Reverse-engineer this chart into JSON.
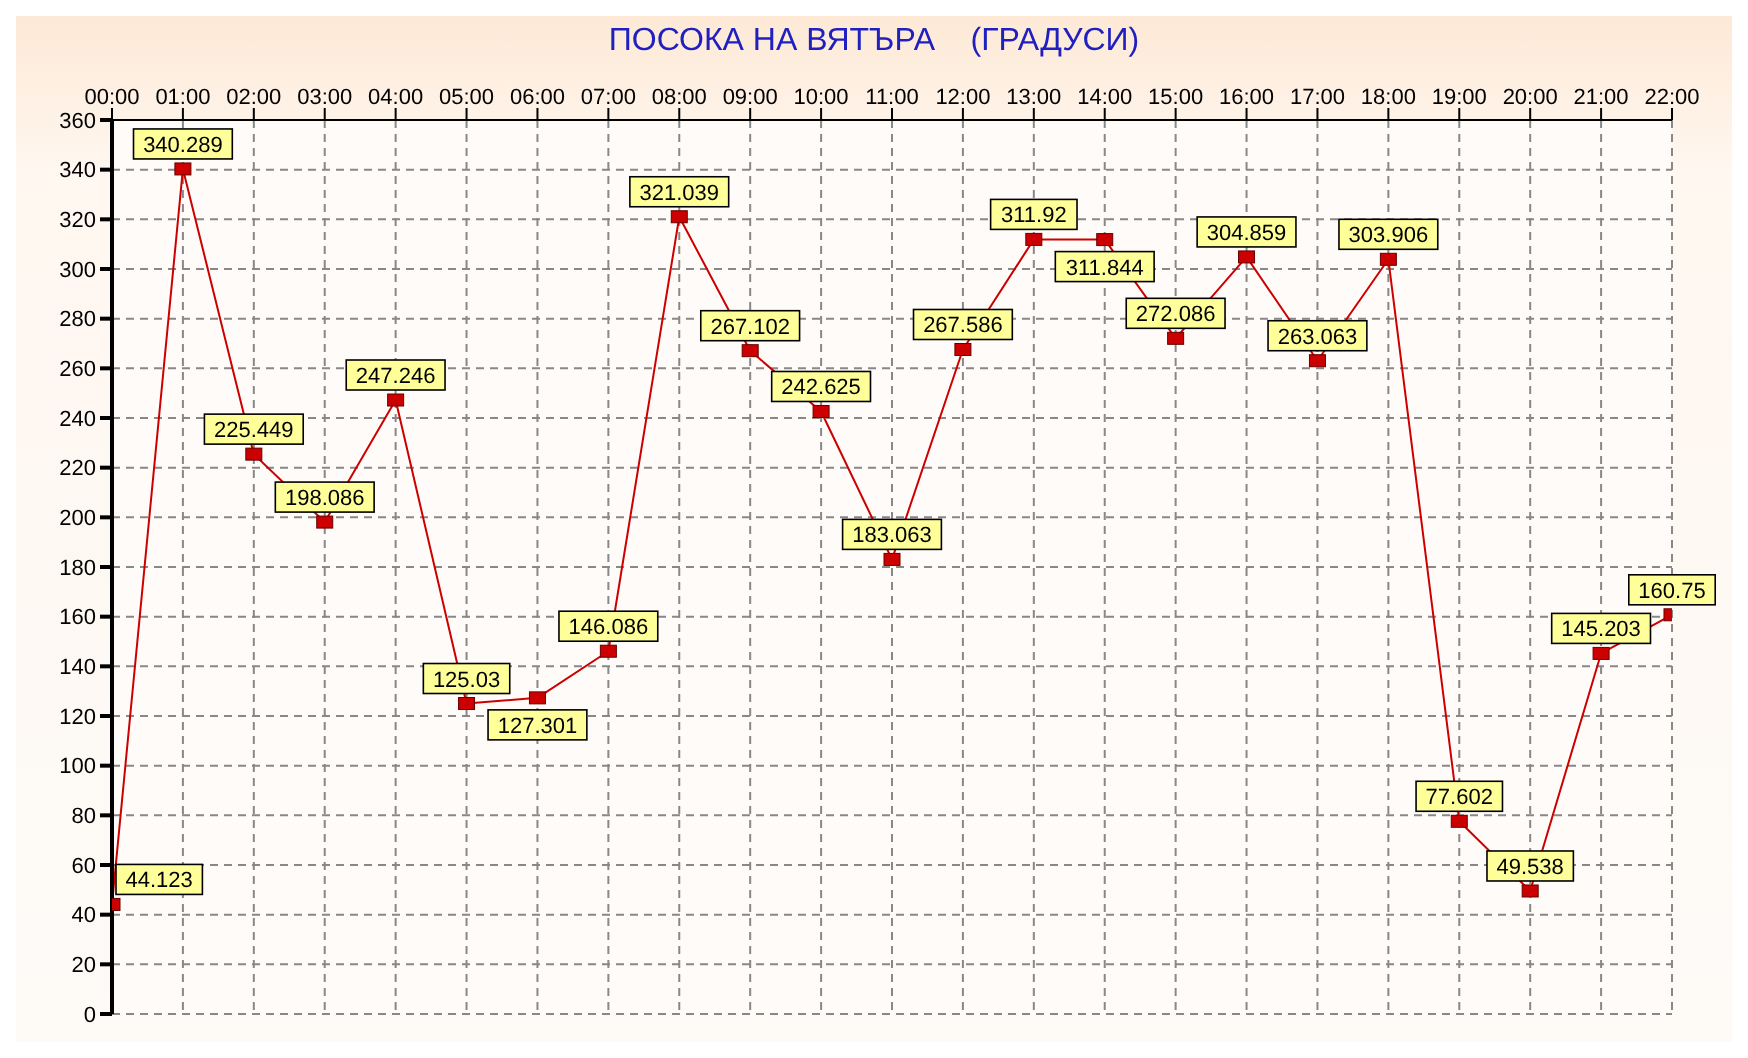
{
  "chart_data": {
    "type": "line",
    "title": "ПОСОКА НА ВЯТЪРА    (ГРАДУСИ)",
    "categories": [
      "00:00",
      "01:00",
      "02:00",
      "03:00",
      "04:00",
      "05:00",
      "06:00",
      "07:00",
      "08:00",
      "09:00",
      "10:00",
      "11:00",
      "12:00",
      "13:00",
      "14:00",
      "15:00",
      "16:00",
      "17:00",
      "18:00",
      "19:00",
      "20:00",
      "21:00",
      "22:00"
    ],
    "series": [
      {
        "color": "#cc0000",
        "values": [
          44.123,
          340.289,
          225.449,
          198.086,
          247.246,
          125.03,
          127.301,
          146.086,
          321.039,
          267.102,
          242.625,
          183.063,
          267.586,
          311.92,
          311.844,
          272.086,
          304.859,
          263.063,
          303.906,
          77.602,
          49.538,
          145.203,
          160.75
        ]
      }
    ],
    "ylim": [
      0,
      360
    ],
    "yticks": [
      0,
      20,
      40,
      60,
      80,
      100,
      120,
      140,
      160,
      180,
      200,
      220,
      240,
      260,
      280,
      300,
      320,
      340,
      360
    ],
    "grid": true,
    "marker": "square",
    "line_style": "solid",
    "data_labels": true
  }
}
